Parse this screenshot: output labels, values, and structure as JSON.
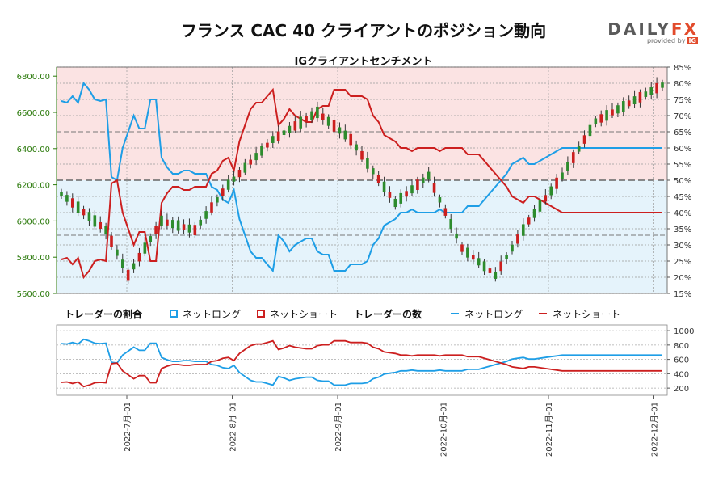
{
  "title": "フランス CAC 40 クライアントのポジション動向",
  "logo": {
    "brand": "DAILY",
    "brand_fx": "FX",
    "provided_by": "provided by",
    "ig": "IG"
  },
  "colors": {
    "net_long": "#1e9ee6",
    "net_short": "#cc1f1f",
    "candle_up": "#2d8c2d",
    "candle_down": "#cc1f1f",
    "bg_long": "#e5f3fb",
    "bg_short": "#fbe3e3",
    "price_axis_text": "#2b7a0b"
  },
  "chart_data": [
    {
      "type": "candlestick",
      "title": "IGクライアントセンチメント",
      "price_ticks": [
        "5600.00",
        "5800.00",
        "6000.00",
        "6200.00",
        "6400.00",
        "6600.00",
        "6800.00"
      ],
      "pct_ticks": [
        "15%",
        "20%",
        "25%",
        "30%",
        "35%",
        "40%",
        "45%",
        "50%",
        "55%",
        "60%",
        "65%",
        "70%",
        "75%",
        "80%",
        "85%"
      ],
      "price_ylim": [
        5600,
        6850
      ],
      "pct_ylim": [
        15,
        85
      ],
      "net_long_pct": [
        74.5,
        74,
        76,
        74,
        80,
        78,
        75,
        74.5,
        75,
        51,
        50,
        60,
        65,
        70,
        66,
        66,
        75,
        75,
        57,
        54,
        52,
        52,
        53,
        53,
        52,
        52,
        52,
        48,
        47,
        44,
        43,
        47,
        38,
        33,
        28,
        26,
        26,
        24,
        22,
        33,
        31,
        28,
        30,
        31,
        32,
        32,
        28,
        27,
        27,
        22,
        22,
        22,
        24,
        24,
        24,
        25,
        30,
        32,
        36,
        37,
        38,
        40,
        40,
        41,
        40,
        40,
        40,
        40,
        41,
        40,
        40,
        40,
        40,
        42,
        42,
        42,
        44,
        46,
        48,
        50,
        52,
        55,
        56,
        57,
        55,
        55,
        56,
        57,
        58,
        59,
        60,
        60,
        60,
        60,
        60,
        60,
        60,
        60,
        60,
        60,
        60,
        60,
        60,
        60,
        60,
        60,
        60,
        60,
        60
      ],
      "net_short_pct": [],
      "price": [],
      "legend": {
        "ratio_group": "トレーダーの割合",
        "count_group": "トレーダーの数",
        "net_long": "ネットロング",
        "net_short": "ネットショート"
      }
    },
    {
      "type": "line",
      "count_ticks": [
        "200",
        "400",
        "600",
        "800",
        "1000"
      ],
      "ylim": [
        100,
        1080
      ],
      "x_ticks": [
        "2022-7月-01",
        "2022-8月-01",
        "2022-9月-01",
        "2022-10月-01",
        "2022-11月-01",
        "2022-12月-01"
      ]
    }
  ]
}
